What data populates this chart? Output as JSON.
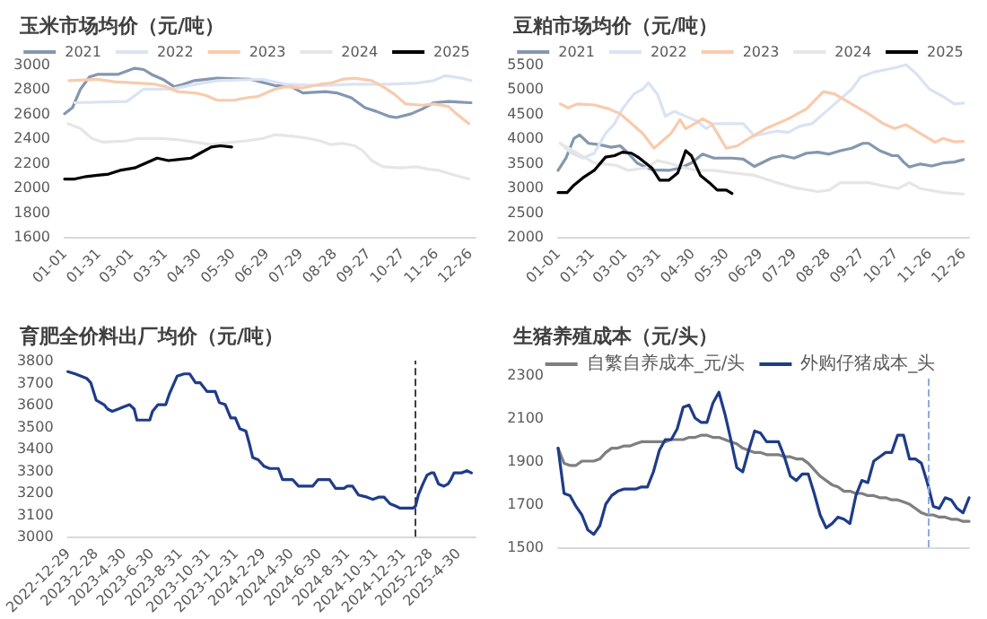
{
  "chart_data": [
    {
      "type": "line",
      "title": "玉米市场均价（元/吨）",
      "legend": "top",
      "grid": false,
      "marker": "none",
      "line_style": "solid",
      "xlim": [
        "--01-01",
        "--12-31"
      ],
      "xticks": [
        {
          "value": "--01-01",
          "label": "01-01"
        },
        {
          "value": "--01-31",
          "label": "01-31"
        },
        {
          "value": "--03-01",
          "label": "03-01"
        },
        {
          "value": "--03-31",
          "label": "03-31"
        },
        {
          "value": "--04-30",
          "label": "04-30"
        },
        {
          "value": "--05-30",
          "label": "05-30"
        },
        {
          "value": "--06-29",
          "label": "06-29"
        },
        {
          "value": "--07-29",
          "label": "07-29"
        },
        {
          "value": "--08-28",
          "label": "08-28"
        },
        {
          "value": "--09-27",
          "label": "09-27"
        },
        {
          "value": "--10-27",
          "label": "10-27"
        },
        {
          "value": "--11-26",
          "label": "11-26"
        },
        {
          "value": "--12-26",
          "label": "12-26"
        }
      ],
      "ylim": [
        1600,
        3000
      ],
      "yticks": [
        1600,
        1800,
        2000,
        2200,
        2400,
        2600,
        2800,
        3000
      ],
      "series": [
        {
          "name": "2021",
          "color": "#8497b0",
          "x": [
            "--01-01",
            "--01-08",
            "--01-15",
            "--01-23",
            "--01-30",
            "--02-17",
            "--03-04",
            "--03-12",
            "--03-19",
            "--03-29",
            "--04-08",
            "--04-16",
            "--04-26",
            "--05-16",
            "--06-15",
            "--07-06",
            "--07-21",
            "--07-31",
            "--08-20",
            "--08-30",
            "--09-12",
            "--09-24",
            "--10-04",
            "--10-15",
            "--10-22",
            "--11-04",
            "--11-14",
            "--11-24",
            "--12-07",
            "--12-27"
          ],
          "values": [
            2600,
            2650,
            2800,
            2900,
            2920,
            2920,
            2970,
            2960,
            2920,
            2880,
            2820,
            2840,
            2870,
            2890,
            2880,
            2830,
            2820,
            2770,
            2780,
            2770,
            2730,
            2650,
            2620,
            2580,
            2570,
            2600,
            2640,
            2690,
            2700,
            2690
          ]
        },
        {
          "name": "2022",
          "color": "#dae3f3",
          "x": [
            "--01-10",
            "--02-25",
            "--03-12",
            "--04-06",
            "--04-21",
            "--05-16",
            "--06-26",
            "--07-16",
            "--08-15",
            "--09-15",
            "--10-15",
            "--11-09",
            "--11-24",
            "--12-04",
            "--12-19",
            "--12-27"
          ],
          "values": [
            2690,
            2700,
            2800,
            2800,
            2830,
            2870,
            2880,
            2840,
            2830,
            2840,
            2840,
            2850,
            2870,
            2910,
            2890,
            2870
          ]
        },
        {
          "name": "2023",
          "color": "#f8cbad",
          "x": [
            "--01-05",
            "--01-30",
            "--02-14",
            "--03-07",
            "--03-22",
            "--04-01",
            "--04-11",
            "--04-26",
            "--05-06",
            "--05-16",
            "--05-31",
            "--06-11",
            "--06-21",
            "--07-06",
            "--07-16",
            "--07-31",
            "--08-15",
            "--08-25",
            "--09-04",
            "--09-15",
            "--09-30",
            "--10-10",
            "--10-20",
            "--10-30",
            "--11-14",
            "--11-24",
            "--12-07",
            "--12-14",
            "--12-25"
          ],
          "values": [
            2870,
            2880,
            2860,
            2850,
            2840,
            2820,
            2780,
            2770,
            2750,
            2710,
            2710,
            2730,
            2740,
            2800,
            2820,
            2810,
            2840,
            2850,
            2880,
            2890,
            2870,
            2820,
            2760,
            2680,
            2670,
            2680,
            2660,
            2600,
            2520
          ]
        },
        {
          "name": "2024",
          "color": "#e7e6e6",
          "x": [
            "--01-04",
            "--01-15",
            "--01-25",
            "--02-04",
            "--02-25",
            "--03-07",
            "--03-27",
            "--04-11",
            "--04-26",
            "--05-11",
            "--05-31",
            "--06-11",
            "--06-26",
            "--07-06",
            "--07-21",
            "--08-05",
            "--08-15",
            "--08-25",
            "--09-04",
            "--09-15",
            "--09-22",
            "--09-30",
            "--10-10",
            "--10-25",
            "--11-09",
            "--11-19",
            "--11-29",
            "--12-09",
            "--12-25"
          ],
          "values": [
            2520,
            2480,
            2400,
            2370,
            2380,
            2400,
            2400,
            2390,
            2370,
            2350,
            2370,
            2380,
            2400,
            2430,
            2420,
            2400,
            2380,
            2350,
            2360,
            2340,
            2300,
            2220,
            2170,
            2160,
            2170,
            2150,
            2140,
            2110,
            2070
          ]
        },
        {
          "name": "2025",
          "color": "#000000",
          "x": [
            "--01-01",
            "--01-10",
            "--01-20",
            "--01-30",
            "--02-09",
            "--02-19",
            "--03-04",
            "--03-14",
            "--03-24",
            "--04-03",
            "--04-13",
            "--04-23",
            "--05-01",
            "--05-11",
            "--05-19",
            "--05-29"
          ],
          "values": [
            2070,
            2070,
            2090,
            2100,
            2110,
            2140,
            2160,
            2200,
            2240,
            2220,
            2230,
            2240,
            2280,
            2330,
            2340,
            2330
          ]
        }
      ]
    },
    {
      "type": "line",
      "title": "豆粕市场均价（元/吨）",
      "legend": "top",
      "grid": false,
      "marker": "none",
      "line_style": "solid",
      "xlim": [
        "--01-01",
        "--12-31"
      ],
      "xticks": [
        {
          "value": "--01-01",
          "label": "01-01"
        },
        {
          "value": "--01-31",
          "label": "01-31"
        },
        {
          "value": "--03-01",
          "label": "03-01"
        },
        {
          "value": "--03-31",
          "label": "03-31"
        },
        {
          "value": "--04-30",
          "label": "04-30"
        },
        {
          "value": "--05-30",
          "label": "05-30"
        },
        {
          "value": "--06-29",
          "label": "06-29"
        },
        {
          "value": "--07-29",
          "label": "07-29"
        },
        {
          "value": "--08-28",
          "label": "08-28"
        },
        {
          "value": "--09-27",
          "label": "09-27"
        },
        {
          "value": "--10-27",
          "label": "10-27"
        },
        {
          "value": "--11-26",
          "label": "11-26"
        },
        {
          "value": "--12-26",
          "label": "12-26"
        }
      ],
      "ylim": [
        2000,
        5500
      ],
      "yticks": [
        2000,
        2500,
        3000,
        3500,
        4000,
        4500,
        5000,
        5500
      ],
      "series": [
        {
          "name": "2021",
          "color": "#8497b0",
          "x": [
            "--01-01",
            "--01-08",
            "--01-15",
            "--01-20",
            "--01-28",
            "--02-07",
            "--02-17",
            "--02-25",
            "--03-04",
            "--03-12",
            "--03-25",
            "--04-09",
            "--04-19",
            "--04-29",
            "--05-09",
            "--05-19",
            "--06-04",
            "--06-14",
            "--06-24",
            "--07-09",
            "--07-19",
            "--07-29",
            "--08-09",
            "--08-19",
            "--08-29",
            "--09-08",
            "--09-18",
            "--09-28",
            "--10-03",
            "--10-13",
            "--10-24",
            "--10-29",
            "--11-03",
            "--11-08",
            "--11-18",
            "--11-28",
            "--12-08",
            "--12-18",
            "--12-26"
          ],
          "values": [
            3350,
            3600,
            4000,
            4070,
            3900,
            3870,
            3820,
            3850,
            3700,
            3500,
            3360,
            3350,
            3400,
            3500,
            3680,
            3600,
            3600,
            3580,
            3430,
            3600,
            3650,
            3600,
            3700,
            3720,
            3680,
            3750,
            3800,
            3900,
            3900,
            3750,
            3650,
            3650,
            3520,
            3420,
            3480,
            3440,
            3500,
            3520,
            3570
          ]
        },
        {
          "name": "2022",
          "color": "#dae3f3",
          "x": [
            "--01-03",
            "--01-13",
            "--01-23",
            "--02-02",
            "--02-12",
            "--02-20",
            "--02-27",
            "--03-09",
            "--03-17",
            "--03-22",
            "--03-30",
            "--04-06",
            "--04-14",
            "--04-24",
            "--05-04",
            "--05-12",
            "--05-19",
            "--06-04",
            "--06-14",
            "--06-24",
            "--07-04",
            "--07-14",
            "--07-24",
            "--08-03",
            "--08-14",
            "--08-24",
            "--09-03",
            "--09-18",
            "--09-26",
            "--10-08",
            "--10-19",
            "--10-29",
            "--11-05",
            "--11-15",
            "--11-26",
            "--12-08",
            "--12-18",
            "--12-26"
          ],
          "values": [
            3900,
            3700,
            3600,
            3700,
            4100,
            4300,
            4600,
            4900,
            5000,
            5130,
            4900,
            4450,
            4550,
            4450,
            4350,
            4200,
            4300,
            4300,
            4300,
            4050,
            4100,
            4150,
            4120,
            4250,
            4300,
            4500,
            4700,
            5000,
            5250,
            5350,
            5400,
            5450,
            5500,
            5300,
            5000,
            4850,
            4700,
            4720
          ]
        },
        {
          "name": "2023",
          "color": "#f8cbad",
          "x": [
            "--01-03",
            "--01-10",
            "--01-18",
            "--02-02",
            "--02-15",
            "--02-25",
            "--03-07",
            "--03-17",
            "--03-27",
            "--04-06",
            "--04-11",
            "--04-19",
            "--04-24",
            "--05-02",
            "--05-09",
            "--05-17",
            "--05-30",
            "--06-09",
            "--06-19",
            "--07-04",
            "--07-24",
            "--08-09",
            "--08-24",
            "--09-03",
            "--09-18",
            "--10-03",
            "--10-16",
            "--10-26",
            "--11-05",
            "--11-18",
            "--12-01",
            "--12-08",
            "--12-18",
            "--12-26"
          ],
          "values": [
            4700,
            4620,
            4700,
            4680,
            4600,
            4500,
            4300,
            4100,
            3800,
            4000,
            4100,
            4380,
            4200,
            4300,
            4400,
            4300,
            3800,
            3850,
            4000,
            4200,
            4400,
            4600,
            4950,
            4900,
            4700,
            4500,
            4300,
            4200,
            4280,
            4100,
            3920,
            4000,
            3930,
            3940
          ]
        },
        {
          "name": "2024",
          "color": "#e7e6e6",
          "x": [
            "--01-03",
            "--01-18",
            "--02-02",
            "--02-22",
            "--03-04",
            "--03-20",
            "--03-30",
            "--04-09",
            "--04-24",
            "--05-04",
            "--05-19",
            "--06-04",
            "--06-24",
            "--07-14",
            "--07-29",
            "--08-19",
            "--08-29",
            "--09-08",
            "--10-03",
            "--10-13",
            "--10-29",
            "--11-08",
            "--11-18",
            "--12-08",
            "--12-26"
          ],
          "values": [
            3900,
            3700,
            3500,
            3450,
            3350,
            3400,
            3550,
            3500,
            3400,
            3350,
            3350,
            3300,
            3250,
            3100,
            3000,
            2920,
            2950,
            3100,
            3100,
            3050,
            2980,
            3100,
            2980,
            2900,
            2870
          ]
        },
        {
          "name": "2025",
          "color": "#000000",
          "x": [
            "--01-01",
            "--01-09",
            "--01-15",
            "--01-23",
            "--02-02",
            "--02-12",
            "--02-20",
            "--02-27",
            "--03-07",
            "--03-14",
            "--03-25",
            "--04-01",
            "--04-09",
            "--04-17",
            "--04-24",
            "--04-29",
            "--05-07",
            "--05-15",
            "--05-22",
            "--05-30",
            "--06-04"
          ],
          "values": [
            2900,
            2900,
            3050,
            3200,
            3350,
            3620,
            3650,
            3720,
            3700,
            3600,
            3400,
            3150,
            3150,
            3300,
            3750,
            3650,
            3250,
            3100,
            2950,
            2950,
            2880
          ]
        }
      ]
    },
    {
      "type": "line",
      "title": "育肥全价料出厂均价（元/吨）",
      "grid": false,
      "marker": "none",
      "line_style": "solid",
      "color": "#1f3c88",
      "xlim": [
        "2022-12-29",
        "2025-06-07"
      ],
      "xticks": [
        {
          "value": "2022-12-29",
          "label": "2022-12-29"
        },
        {
          "value": "2023-02-28",
          "label": "2023-2-28"
        },
        {
          "value": "2023-04-30",
          "label": "2023-4-30"
        },
        {
          "value": "2023-06-30",
          "label": "2023-6-30"
        },
        {
          "value": "2023-08-31",
          "label": "2023-8-31"
        },
        {
          "value": "2023-10-31",
          "label": "2023-10-31"
        },
        {
          "value": "2023-12-31",
          "label": "2023-12-31"
        },
        {
          "value": "2024-02-29",
          "label": "2024-2-29"
        },
        {
          "value": "2024-04-30",
          "label": "2024-4-30"
        },
        {
          "value": "2024-06-30",
          "label": "2024-6-30"
        },
        {
          "value": "2024-08-31",
          "label": "2024-8-31"
        },
        {
          "value": "2024-10-31",
          "label": "2024-10-31"
        },
        {
          "value": "2024-12-31",
          "label": "2024-12-31"
        },
        {
          "value": "2025-02-28",
          "label": "2025-2-28"
        },
        {
          "value": "2025-04-30",
          "label": "2025-4-30"
        }
      ],
      "ylim": [
        3000,
        3800
      ],
      "yticks": [
        3000,
        3100,
        3200,
        3300,
        3400,
        3500,
        3600,
        3700,
        3800
      ],
      "ref_lines": [
        {
          "axis": "x",
          "value": "2025-01-27",
          "color": "#404040",
          "line_style": "dashed"
        }
      ],
      "x": [
        "2022-12-29",
        "2023-01-14",
        "2023-02-08",
        "2023-02-17",
        "2023-03-01",
        "2023-03-18",
        "2023-03-26",
        "2023-04-05",
        "2023-04-18",
        "2023-04-30",
        "2023-05-13",
        "2023-05-23",
        "2023-05-29",
        "2023-06-26",
        "2023-07-02",
        "2023-07-14",
        "2023-07-31",
        "2023-08-08",
        "2023-08-25",
        "2023-09-09",
        "2023-09-21",
        "2023-10-04",
        "2023-10-14",
        "2023-10-29",
        "2023-11-16",
        "2023-11-25",
        "2023-12-08",
        "2023-12-20",
        "2023-12-30",
        "2024-01-09",
        "2024-01-22",
        "2024-01-30",
        "2024-02-06",
        "2024-02-18",
        "2024-03-02",
        "2024-03-14",
        "2024-04-02",
        "2024-04-11",
        "2024-05-03",
        "2024-05-16",
        "2024-06-03",
        "2024-06-16",
        "2024-06-28",
        "2024-07-23",
        "2024-08-05",
        "2024-08-24",
        "2024-08-30",
        "2024-09-11",
        "2024-09-24",
        "2024-10-13",
        "2024-10-25",
        "2024-11-07",
        "2024-11-19",
        "2024-12-02",
        "2024-12-14",
        "2024-12-24",
        "2025-01-21",
        "2025-01-27",
        "2025-02-02",
        "2025-02-12",
        "2025-02-21",
        "2025-03-02",
        "2025-03-08",
        "2025-03-18",
        "2025-03-30",
        "2025-04-08",
        "2025-04-14",
        "2025-04-21",
        "2025-05-07",
        "2025-05-19",
        "2025-05-29"
      ],
      "values": [
        3750,
        3740,
        3720,
        3700,
        3620,
        3600,
        3580,
        3570,
        3580,
        3590,
        3600,
        3580,
        3530,
        3530,
        3570,
        3600,
        3600,
        3650,
        3730,
        3740,
        3740,
        3700,
        3700,
        3660,
        3660,
        3610,
        3600,
        3540,
        3540,
        3490,
        3480,
        3420,
        3360,
        3350,
        3320,
        3310,
        3310,
        3260,
        3260,
        3230,
        3230,
        3230,
        3260,
        3260,
        3220,
        3220,
        3230,
        3230,
        3190,
        3180,
        3170,
        3180,
        3180,
        3150,
        3140,
        3130,
        3130,
        3140,
        3190,
        3240,
        3280,
        3290,
        3290,
        3240,
        3230,
        3240,
        3260,
        3290,
        3290,
        3300,
        3290
      ]
    },
    {
      "type": "line",
      "title": "生猪养殖成本（元/头）",
      "legend": "top",
      "grid": false,
      "marker": "none",
      "line_style": "solid",
      "tick_labels": "y",
      "ylim": [
        1500,
        2300
      ],
      "yticks": [
        1500,
        1700,
        1900,
        2100,
        2300
      ],
      "categories": [
        null,
        null,
        null,
        null,
        null,
        null,
        null,
        null,
        null,
        null,
        null,
        null,
        null,
        null,
        null,
        null,
        null,
        null,
        null,
        null,
        null,
        null,
        null,
        null,
        null,
        null,
        null,
        null,
        null,
        null,
        null,
        null,
        null,
        null,
        null,
        null,
        null,
        null,
        null,
        null,
        null,
        null,
        null,
        null,
        null,
        null,
        null,
        null,
        null,
        null,
        null,
        null,
        null,
        null,
        null,
        null,
        null,
        null,
        null,
        null,
        null,
        null,
        null,
        null,
        null,
        null,
        null,
        null,
        null,
        null
      ],
      "series": [
        {
          "name": "自繁自养成本_元/头",
          "color": "#7f7f7f",
          "values": [
            1960,
            1890,
            1880,
            1880,
            1900,
            1900,
            1900,
            1910,
            1940,
            1960,
            1960,
            1970,
            1970,
            1980,
            1990,
            1990,
            1990,
            1990,
            1990,
            2000,
            2000,
            2000,
            2010,
            2010,
            2020,
            2020,
            2010,
            2010,
            2000,
            1990,
            1980,
            1960,
            1950,
            1940,
            1940,
            1930,
            1930,
            1930,
            1920,
            1920,
            1910,
            1910,
            1890,
            1860,
            1830,
            1810,
            1790,
            1780,
            1760,
            1760,
            1750,
            1750,
            1740,
            1740,
            1730,
            1730,
            1720,
            1720,
            1710,
            1700,
            1680,
            1660,
            1650,
            1650,
            1640,
            1640,
            1630,
            1630,
            1620,
            1620
          ]
        },
        {
          "name": "外购仔猪成本_头",
          "color": "#1f3c88",
          "values": [
            1960,
            1750,
            1740,
            1690,
            1650,
            1580,
            1560,
            1600,
            1700,
            1740,
            1760,
            1770,
            1770,
            1770,
            1780,
            1780,
            1850,
            1950,
            2000,
            2000,
            2050,
            2150,
            2160,
            2100,
            2080,
            2080,
            2170,
            2220,
            2120,
            2000,
            1870,
            1850,
            1950,
            2040,
            2030,
            1990,
            1990,
            1990,
            1920,
            1830,
            1810,
            1840,
            1840,
            1750,
            1650,
            1590,
            1610,
            1640,
            1630,
            1610,
            1740,
            1810,
            1800,
            1900,
            1920,
            1940,
            1940,
            2020,
            2020,
            1910,
            1910,
            1890,
            1800,
            1690,
            1680,
            1730,
            1720,
            1680,
            1660,
            1730
          ]
        }
      ]
    }
  ]
}
